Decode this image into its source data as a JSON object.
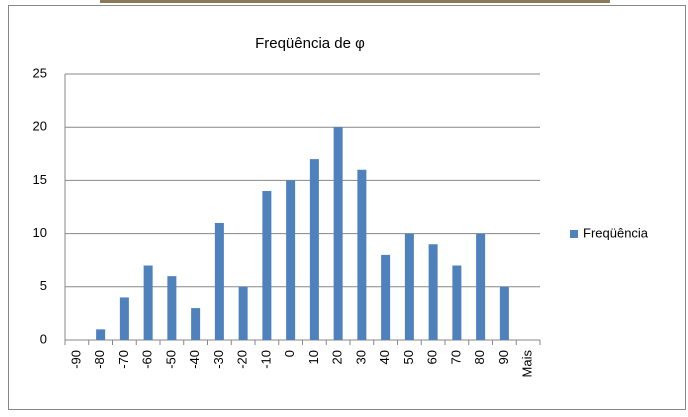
{
  "chart_data": {
    "type": "bar",
    "title": "Freqüência de φ",
    "categories": [
      "-90",
      "-80",
      "-70",
      "-60",
      "-50",
      "-40",
      "-30",
      "-20",
      "-10",
      "0",
      "10",
      "20",
      "30",
      "40",
      "50",
      "60",
      "70",
      "80",
      "90",
      "Mais"
    ],
    "series": [
      {
        "name": "Freqüência",
        "color": "#4f81bd",
        "values": [
          0,
          1,
          4,
          7,
          6,
          3,
          11,
          5,
          14,
          15,
          17,
          20,
          16,
          8,
          10,
          9,
          7,
          10,
          5,
          0
        ]
      }
    ],
    "ylim": [
      0,
      25
    ],
    "yticks": [
      0,
      5,
      10,
      15,
      20,
      25
    ],
    "grid": true,
    "legend": "right"
  }
}
